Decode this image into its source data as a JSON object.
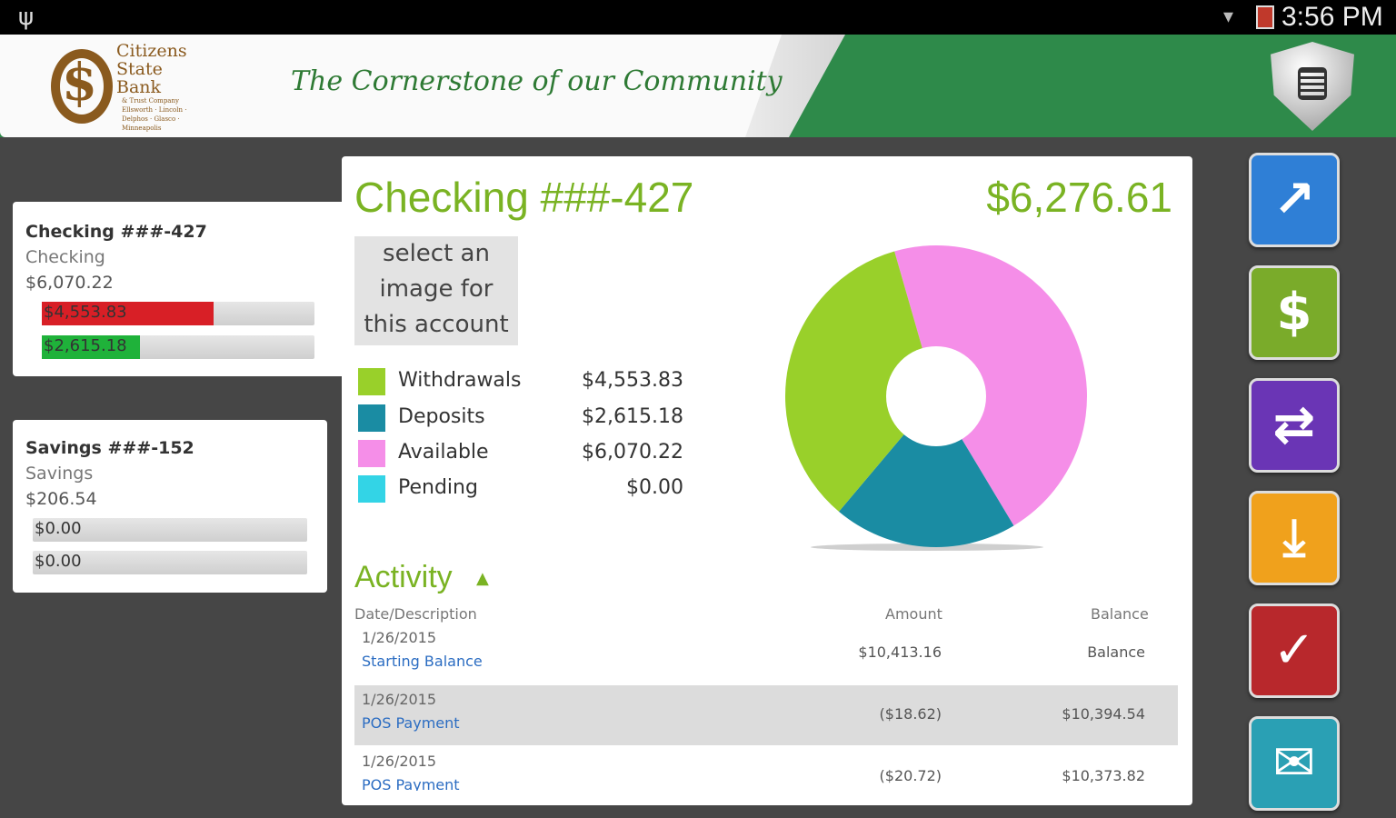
{
  "status_bar": {
    "time": "3:56 PM"
  },
  "header": {
    "bank_name_lines": [
      "Citizens",
      "State",
      "Bank"
    ],
    "bank_subtitle": "& Trust Company",
    "bank_locations": "Ellsworth · Lincoln · Delphos · Glasco · Minneapolis",
    "slogan": "The Cornerstone of our Community",
    "logo_symbol": "$"
  },
  "accounts": [
    {
      "name": "Checking ###-427",
      "type": "Checking",
      "balance": "$6,070.22",
      "bars": [
        {
          "label": "$4,553.83",
          "fraction": 0.63,
          "color": "#d81f26"
        },
        {
          "label": "$2,615.18",
          "fraction": 0.36,
          "color": "#1fb23a"
        }
      ]
    },
    {
      "name": "Savings ###-152",
      "type": "Savings",
      "balance": "$206.54",
      "bars": [
        {
          "label": "$0.00",
          "fraction": 0
        },
        {
          "label": "$0.00",
          "fraction": 0
        }
      ]
    }
  ],
  "detail": {
    "title": "Checking ###-427",
    "total": "$6,276.61",
    "image_placeholder": [
      "select an",
      "image for",
      "this account"
    ],
    "legend": [
      {
        "label": "Withdrawals",
        "value": "$4,553.83",
        "color": "#99d02a"
      },
      {
        "label": "Deposits",
        "value": "$2,615.18",
        "color": "#1a8ca3"
      },
      {
        "label": "Available",
        "value": "$6,070.22",
        "color": "#f58ee8"
      },
      {
        "label": "Pending",
        "value": "$0.00",
        "color": "#33d4e6"
      }
    ],
    "activity": {
      "title": "Activity",
      "columns": {
        "description": "Date/Description",
        "amount": "Amount",
        "balance": "Balance"
      },
      "rows": [
        {
          "date": "1/26/2015",
          "desc": "Starting Balance",
          "amount": "$10,413.16",
          "balance": "Balance"
        },
        {
          "date": "1/26/2015",
          "desc": "POS Payment",
          "amount": "($18.62)",
          "balance": "$10,394.54"
        },
        {
          "date": "1/26/2015",
          "desc": "POS Payment",
          "amount": "($20.72)",
          "balance": "$10,373.82"
        }
      ]
    }
  },
  "chart_data": {
    "type": "pie",
    "donut": true,
    "categories": [
      "Withdrawals",
      "Deposits",
      "Available",
      "Pending"
    ],
    "values": [
      4553.83,
      2615.18,
      6070.22,
      0.0
    ],
    "colors": [
      "#99d02a",
      "#1a8ca3",
      "#f58ee8",
      "#33d4e6"
    ]
  },
  "nav": [
    {
      "name": "accounts-button",
      "icon": "bank-chart-icon",
      "glyph": "↗",
      "color": "#2f7fd6"
    },
    {
      "name": "pay-bills-button",
      "icon": "dollar-icon",
      "glyph": "$",
      "color": "#7aab2a"
    },
    {
      "name": "transfer-button",
      "icon": "transfer-arrows-icon",
      "glyph": "⇄",
      "color": "#6a35b5"
    },
    {
      "name": "deposit-button",
      "icon": "inbox-download-icon",
      "glyph": "⤓",
      "color": "#f0a11c"
    },
    {
      "name": "check-button",
      "icon": "checkmark-icon",
      "glyph": "✓",
      "color": "#b8282c"
    },
    {
      "name": "contact-button",
      "icon": "phone-mail-icon",
      "glyph": "✉",
      "color": "#2aa0b4"
    }
  ]
}
